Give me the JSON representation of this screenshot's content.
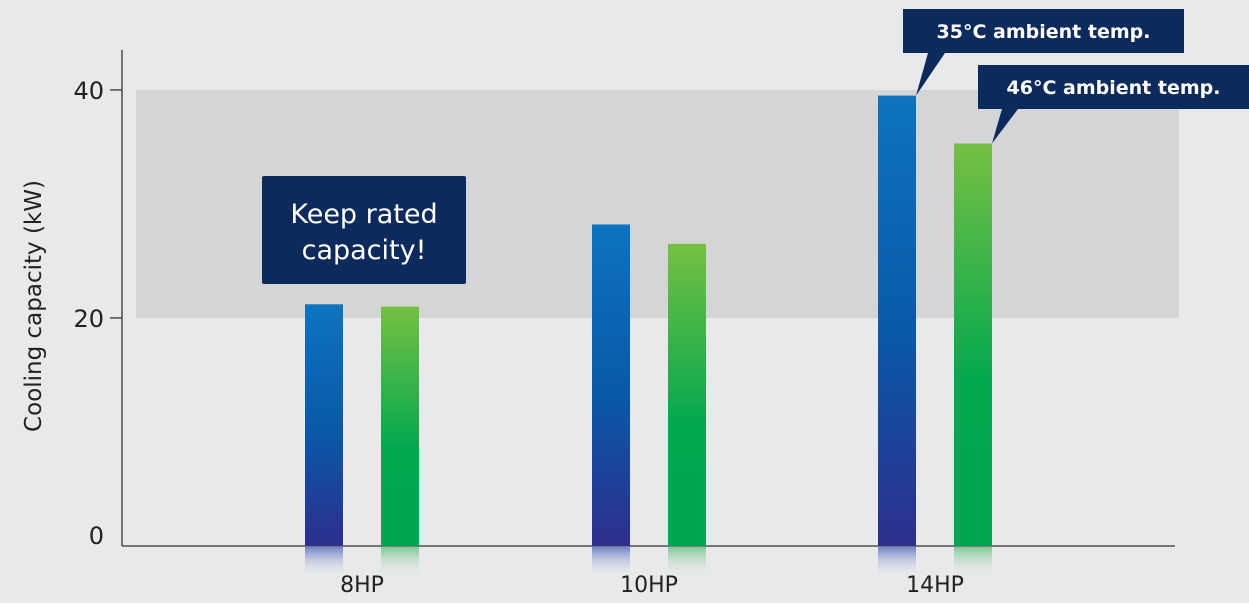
{
  "chart_data": {
    "type": "bar",
    "ylabel": "Cooling capacity (kW)",
    "xlabel": "",
    "ylim": [
      0,
      43.5
    ],
    "y_ticks": [
      0,
      20,
      40
    ],
    "categories": [
      "8HP",
      "10HP",
      "14HP"
    ],
    "series": [
      {
        "name": "35°C ambient temp.",
        "values": [
          21.2,
          28.2,
          39.5
        ]
      },
      {
        "name": "46°C ambient temp.",
        "values": [
          21.0,
          26.5,
          35.3
        ]
      }
    ],
    "highlight_band": {
      "from": 20,
      "to": 40
    },
    "annotation": "Keep rated capacity!",
    "grid": false
  },
  "colors": {
    "background": "#e8e9ea",
    "band": "#d4d5d7",
    "axis": "#333333",
    "text": "#222222",
    "callout": "#0d2a5c",
    "series_35_top": "#0c74c0",
    "series_35_bottom": "#2e2e8c",
    "series_46_top": "#76c043",
    "series_46_bottom": "#00a651"
  }
}
